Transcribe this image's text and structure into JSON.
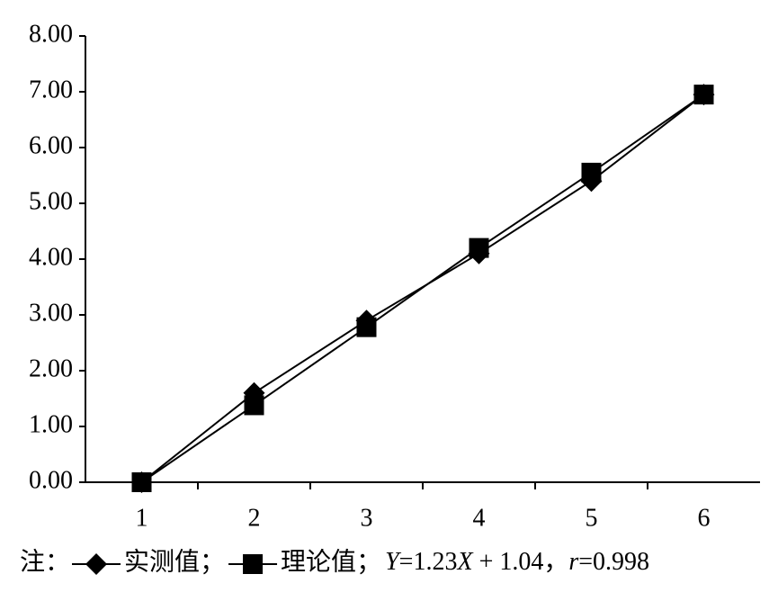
{
  "chart_data": {
    "type": "line",
    "categories": [
      "1",
      "2",
      "3",
      "4",
      "5",
      "6"
    ],
    "series": [
      {
        "name": "实测值",
        "color": "#000000",
        "marker": "diamond",
        "values": [
          0,
          1.6,
          2.9,
          4.1,
          5.4,
          6.95
        ]
      },
      {
        "name": "理论值",
        "color": "#000000",
        "marker": "square",
        "values": [
          0,
          1.38,
          2.78,
          4.2,
          5.55,
          6.95
        ]
      }
    ],
    "ylim": [
      0,
      8
    ],
    "yticks": [
      {
        "value": 0,
        "label": "0.00"
      },
      {
        "value": 1,
        "label": "1.00"
      },
      {
        "value": 2,
        "label": "2.00"
      },
      {
        "value": 3,
        "label": "3.00"
      },
      {
        "value": 4,
        "label": "4.00"
      },
      {
        "value": 5,
        "label": "5.00"
      },
      {
        "value": 6,
        "label": "6.00"
      },
      {
        "value": 7,
        "label": "7.00"
      },
      {
        "value": 8,
        "label": "8.00"
      }
    ],
    "grid": false,
    "note_prefix": "注：",
    "separator": "；",
    "equation": [
      "Y",
      "=1.23",
      "X",
      " + 1.04，",
      "r",
      "=0.998"
    ],
    "equation_italic": [
      true,
      false,
      true,
      false,
      true,
      false
    ]
  }
}
